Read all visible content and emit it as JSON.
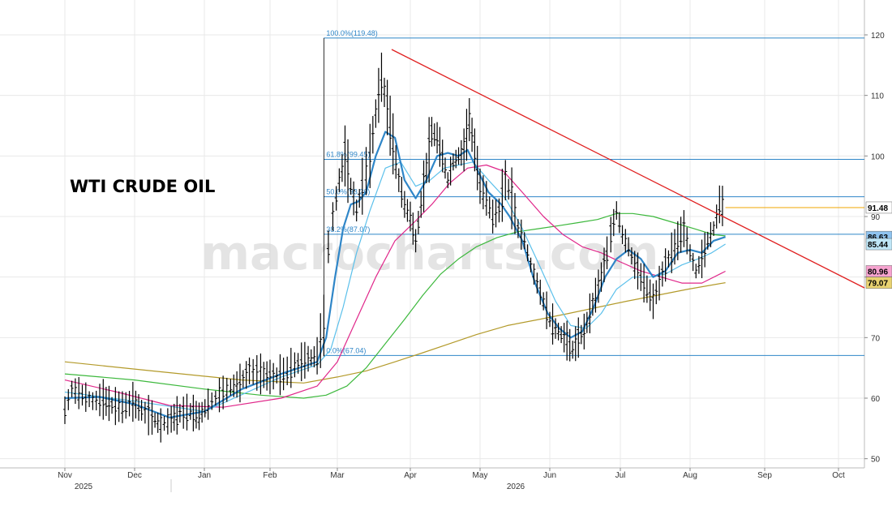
{
  "chart_data": {
    "type": "line",
    "title": "WTI CRUDE OIL",
    "watermark": "macrocharts.com",
    "ylim": [
      48,
      125
    ],
    "y_ticks": [
      50,
      60,
      70,
      80,
      90,
      100,
      110,
      120
    ],
    "x_month_ticks": [
      "Nov",
      "Dec",
      "Jan",
      "Feb",
      "Mar",
      "Apr",
      "May",
      "Jun",
      "Jul",
      "Aug",
      "Sep",
      "Oct"
    ],
    "x_year_labels": [
      "2025",
      "2026"
    ],
    "grid": true,
    "fibonacci_levels": [
      {
        "label": "100.0%(119.48)",
        "value": 119.48
      },
      {
        "label": "61.8%(99.45)",
        "value": 99.45
      },
      {
        "label": "50.0%(93.26)",
        "value": 93.26
      },
      {
        "label": "38.2%(87.07)",
        "value": 87.07
      },
      {
        "label": "0.0%(67.04)",
        "value": 67.04
      }
    ],
    "last_price": {
      "label": "91.48",
      "value": 91.48,
      "color": "#f0a400"
    },
    "ma_badges": [
      {
        "label": "86.63",
        "value": 86.63,
        "color": "#2f86c8"
      },
      {
        "label": "85.44",
        "value": 85.44,
        "color": "#5bc0eb"
      },
      {
        "label": "80.96",
        "value": 80.96,
        "color": "#e0278a"
      },
      {
        "label": "79.07",
        "value": 79.07,
        "color": "#b39a2a"
      }
    ],
    "trendline": {
      "color": "#e02020",
      "from": [
        -10.2,
        117.5
      ],
      "to": [
        7.2,
        77.5
      ]
    },
    "colors": {
      "price": "#000000",
      "fib": "#2f86c8",
      "ma_fast": "#2f86c8",
      "ma_fast2": "#5bc0eb",
      "ma_pink": "#e0278a",
      "ma_green": "#3cb83c",
      "ma_olive": "#b39a2a",
      "axis": "#bbbbbb",
      "grid": "#e8e8e8"
    },
    "price_path": [
      [
        -14.0,
        58.0
      ],
      [
        -13.6,
        61.5
      ],
      [
        -13.0,
        60.5
      ],
      [
        -12.4,
        59.5
      ],
      [
        -11.8,
        59.8
      ],
      [
        -11.3,
        58.8
      ],
      [
        -10.7,
        58.5
      ],
      [
        -10.1,
        59.4
      ],
      [
        -9.6,
        58.0
      ],
      [
        -9.0,
        56.8
      ],
      [
        -8.5,
        55.5
      ],
      [
        -7.9,
        56.5
      ],
      [
        -7.4,
        57.5
      ],
      [
        -6.8,
        57.8
      ],
      [
        -6.3,
        57.0
      ],
      [
        -5.8,
        59.0
      ],
      [
        -5.2,
        60.5
      ],
      [
        -4.6,
        61.8
      ],
      [
        -4.1,
        62.5
      ],
      [
        -3.6,
        64.5
      ],
      [
        -3.0,
        64.0
      ],
      [
        -2.5,
        63.5
      ],
      [
        -1.9,
        64.0
      ],
      [
        -1.4,
        65.5
      ],
      [
        -0.8,
        66.5
      ],
      [
        -0.4,
        67.0
      ],
      [
        -0.1,
        72.0
      ],
      [
        0.1,
        85.0
      ],
      [
        0.3,
        90.0
      ],
      [
        0.6,
        96.0
      ],
      [
        0.9,
        100.0
      ],
      [
        1.2,
        95.0
      ],
      [
        1.5,
        91.0
      ],
      [
        1.8,
        95.0
      ],
      [
        2.2,
        100.0
      ],
      [
        2.5,
        107.0
      ],
      [
        2.8,
        113.0
      ],
      [
        3.1,
        108.0
      ],
      [
        3.4,
        102.0
      ],
      [
        3.7,
        96.0
      ],
      [
        4.0,
        92.0
      ],
      [
        4.3,
        90.0
      ],
      [
        4.6,
        86.0
      ],
      [
        4.9,
        92.0
      ],
      [
        5.2,
        98.0
      ],
      [
        5.5,
        104.0
      ],
      [
        5.8,
        103.0
      ],
      [
        6.1,
        100.0
      ],
      [
        6.4,
        96.0
      ],
      [
        6.7,
        99.0
      ],
      [
        7.0,
        100.0
      ],
      [
        7.3,
        101.0
      ],
      [
        7.6,
        106.0
      ],
      [
        7.9,
        101.0
      ],
      [
        8.2,
        95.0
      ],
      [
        8.5,
        93.0
      ],
      [
        8.8,
        90.0
      ],
      [
        9.1,
        91.0
      ],
      [
        9.4,
        96.0
      ],
      [
        9.7,
        93.0
      ],
      [
        10.0,
        88.0
      ],
      [
        10.3,
        86.0
      ],
      [
        10.6,
        82.0
      ],
      [
        10.9,
        79.0
      ],
      [
        11.2,
        76.0
      ],
      [
        11.5,
        73.0
      ],
      [
        11.8,
        71.5
      ],
      [
        12.1,
        70.5
      ],
      [
        12.4,
        69.5
      ],
      [
        12.7,
        68.0
      ],
      [
        13.0,
        70.0
      ],
      [
        13.3,
        71.0
      ],
      [
        13.6,
        74.0
      ],
      [
        13.9,
        77.0
      ],
      [
        14.2,
        80.0
      ],
      [
        14.5,
        84.0
      ],
      [
        14.7,
        87.0
      ],
      [
        15.0,
        91.0
      ],
      [
        15.3,
        87.0
      ],
      [
        15.6,
        85.0
      ],
      [
        15.9,
        82.0
      ],
      [
        16.2,
        80.0
      ],
      [
        16.5,
        78.0
      ],
      [
        16.8,
        76.0
      ],
      [
        17.1,
        79.0
      ],
      [
        17.4,
        82.0
      ],
      [
        17.7,
        84.0
      ],
      [
        18.0,
        86.0
      ],
      [
        18.3,
        88.0
      ],
      [
        18.6,
        84.0
      ],
      [
        18.9,
        81.0
      ],
      [
        19.2,
        83.0
      ],
      [
        19.5,
        86.0
      ],
      [
        19.8,
        88.0
      ],
      [
        20.1,
        92.0
      ],
      [
        20.4,
        91.48
      ]
    ],
    "ma_fast": [
      [
        -14.0,
        60.0
      ],
      [
        -12.0,
        60.2
      ],
      [
        -10.0,
        59.0
      ],
      [
        -8.0,
        56.8
      ],
      [
        -6.0,
        57.8
      ],
      [
        -4.0,
        61.5
      ],
      [
        -2.0,
        64.0
      ],
      [
        -0.4,
        66.0
      ],
      [
        0.0,
        70.0
      ],
      [
        0.4,
        80.0
      ],
      [
        0.8,
        88.0
      ],
      [
        1.2,
        92.0
      ],
      [
        1.6,
        92.5
      ],
      [
        2.0,
        94.0
      ],
      [
        2.5,
        100.0
      ],
      [
        3.0,
        104.0
      ],
      [
        3.5,
        103.0
      ],
      [
        4.0,
        96.0
      ],
      [
        4.6,
        93.0
      ],
      [
        5.2,
        96.0
      ],
      [
        5.8,
        100.0
      ],
      [
        6.4,
        100.5
      ],
      [
        7.0,
        100.0
      ],
      [
        7.5,
        101.0
      ],
      [
        8.0,
        98.0
      ],
      [
        8.6,
        94.0
      ],
      [
        9.2,
        92.0
      ],
      [
        9.6,
        90.0
      ],
      [
        10.2,
        86.0
      ],
      [
        10.8,
        79.0
      ],
      [
        11.4,
        74.0
      ],
      [
        12.0,
        71.5
      ],
      [
        12.6,
        70.0
      ],
      [
        13.2,
        71.0
      ],
      [
        13.8,
        75.0
      ],
      [
        14.4,
        80.0
      ],
      [
        15.0,
        83.0
      ],
      [
        15.6,
        84.5
      ],
      [
        16.2,
        83.0
      ],
      [
        16.8,
        80.0
      ],
      [
        17.4,
        81.0
      ],
      [
        18.0,
        84.0
      ],
      [
        18.6,
        84.5
      ],
      [
        19.2,
        84.0
      ],
      [
        19.8,
        86.0
      ],
      [
        20.4,
        86.63
      ]
    ],
    "ma_fast2": [
      [
        -14.0,
        61.0
      ],
      [
        -10.0,
        59.5
      ],
      [
        -6.0,
        57.8
      ],
      [
        -2.0,
        63.5
      ],
      [
        -0.4,
        65.5
      ],
      [
        0.2,
        68.0
      ],
      [
        0.8,
        75.0
      ],
      [
        1.5,
        84.0
      ],
      [
        2.2,
        91.0
      ],
      [
        3.0,
        98.0
      ],
      [
        3.8,
        99.0
      ],
      [
        4.6,
        95.0
      ],
      [
        5.4,
        96.0
      ],
      [
        6.2,
        98.0
      ],
      [
        7.0,
        98.5
      ],
      [
        7.8,
        99.0
      ],
      [
        8.6,
        96.0
      ],
      [
        9.4,
        93.0
      ],
      [
        10.2,
        88.0
      ],
      [
        11.0,
        82.0
      ],
      [
        11.8,
        76.0
      ],
      [
        12.6,
        72.0
      ],
      [
        13.4,
        71.5
      ],
      [
        14.2,
        74.0
      ],
      [
        15.0,
        78.0
      ],
      [
        15.8,
        80.0
      ],
      [
        16.6,
        80.0
      ],
      [
        17.4,
        80.5
      ],
      [
        18.2,
        82.0
      ],
      [
        19.0,
        83.0
      ],
      [
        19.7,
        84.0
      ],
      [
        20.4,
        85.44
      ]
    ],
    "ma_pink": [
      [
        -14.0,
        63.0
      ],
      [
        -11.0,
        61.0
      ],
      [
        -8.0,
        58.8
      ],
      [
        -5.0,
        58.5
      ],
      [
        -2.0,
        60.0
      ],
      [
        -0.4,
        62.0
      ],
      [
        0.5,
        66.0
      ],
      [
        1.5,
        73.0
      ],
      [
        2.5,
        80.0
      ],
      [
        3.5,
        86.0
      ],
      [
        4.5,
        89.0
      ],
      [
        5.5,
        92.0
      ],
      [
        6.5,
        95.5
      ],
      [
        7.5,
        98.0
      ],
      [
        8.5,
        98.5
      ],
      [
        9.3,
        97.5
      ],
      [
        10.2,
        94.0
      ],
      [
        11.2,
        90.0
      ],
      [
        12.2,
        87.0
      ],
      [
        13.2,
        85.0
      ],
      [
        14.2,
        84.0
      ],
      [
        15.2,
        82.5
      ],
      [
        16.2,
        81.0
      ],
      [
        17.2,
        80.0
      ],
      [
        18.2,
        79.0
      ],
      [
        19.2,
        79.0
      ],
      [
        20.4,
        80.96
      ]
    ],
    "ma_green": [
      [
        -14.0,
        64.0
      ],
      [
        -10.0,
        63.0
      ],
      [
        -6.0,
        61.5
      ],
      [
        -3.0,
        60.5
      ],
      [
        -1.0,
        60.0
      ],
      [
        0.0,
        60.5
      ],
      [
        1.0,
        62.0
      ],
      [
        2.0,
        65.0
      ],
      [
        3.0,
        69.0
      ],
      [
        4.0,
        73.0
      ],
      [
        5.0,
        77.0
      ],
      [
        6.0,
        80.5
      ],
      [
        7.0,
        83.0
      ],
      [
        8.0,
        85.0
      ],
      [
        9.0,
        86.5
      ],
      [
        10.0,
        87.5
      ],
      [
        11.0,
        88.0
      ],
      [
        12.0,
        88.5
      ],
      [
        13.0,
        89.0
      ],
      [
        14.0,
        89.5
      ],
      [
        15.0,
        90.5
      ],
      [
        15.8,
        90.5
      ],
      [
        16.8,
        90.0
      ],
      [
        17.8,
        89.0
      ],
      [
        18.8,
        88.0
      ],
      [
        19.8,
        87.0
      ],
      [
        20.4,
        86.8
      ]
    ],
    "ma_olive": [
      [
        -14.0,
        66.0
      ],
      [
        -9.0,
        64.5
      ],
      [
        -4.0,
        63.0
      ],
      [
        -1.0,
        62.5
      ],
      [
        0.5,
        63.5
      ],
      [
        2.0,
        64.5
      ],
      [
        3.5,
        66.0
      ],
      [
        5.0,
        67.5
      ],
      [
        6.5,
        69.0
      ],
      [
        8.0,
        70.5
      ],
      [
        9.5,
        72.0
      ],
      [
        11.0,
        73.0
      ],
      [
        12.5,
        74.0
      ],
      [
        14.0,
        75.0
      ],
      [
        15.5,
        76.0
      ],
      [
        17.0,
        77.0
      ],
      [
        18.5,
        78.0
      ],
      [
        20.4,
        79.07
      ]
    ]
  }
}
